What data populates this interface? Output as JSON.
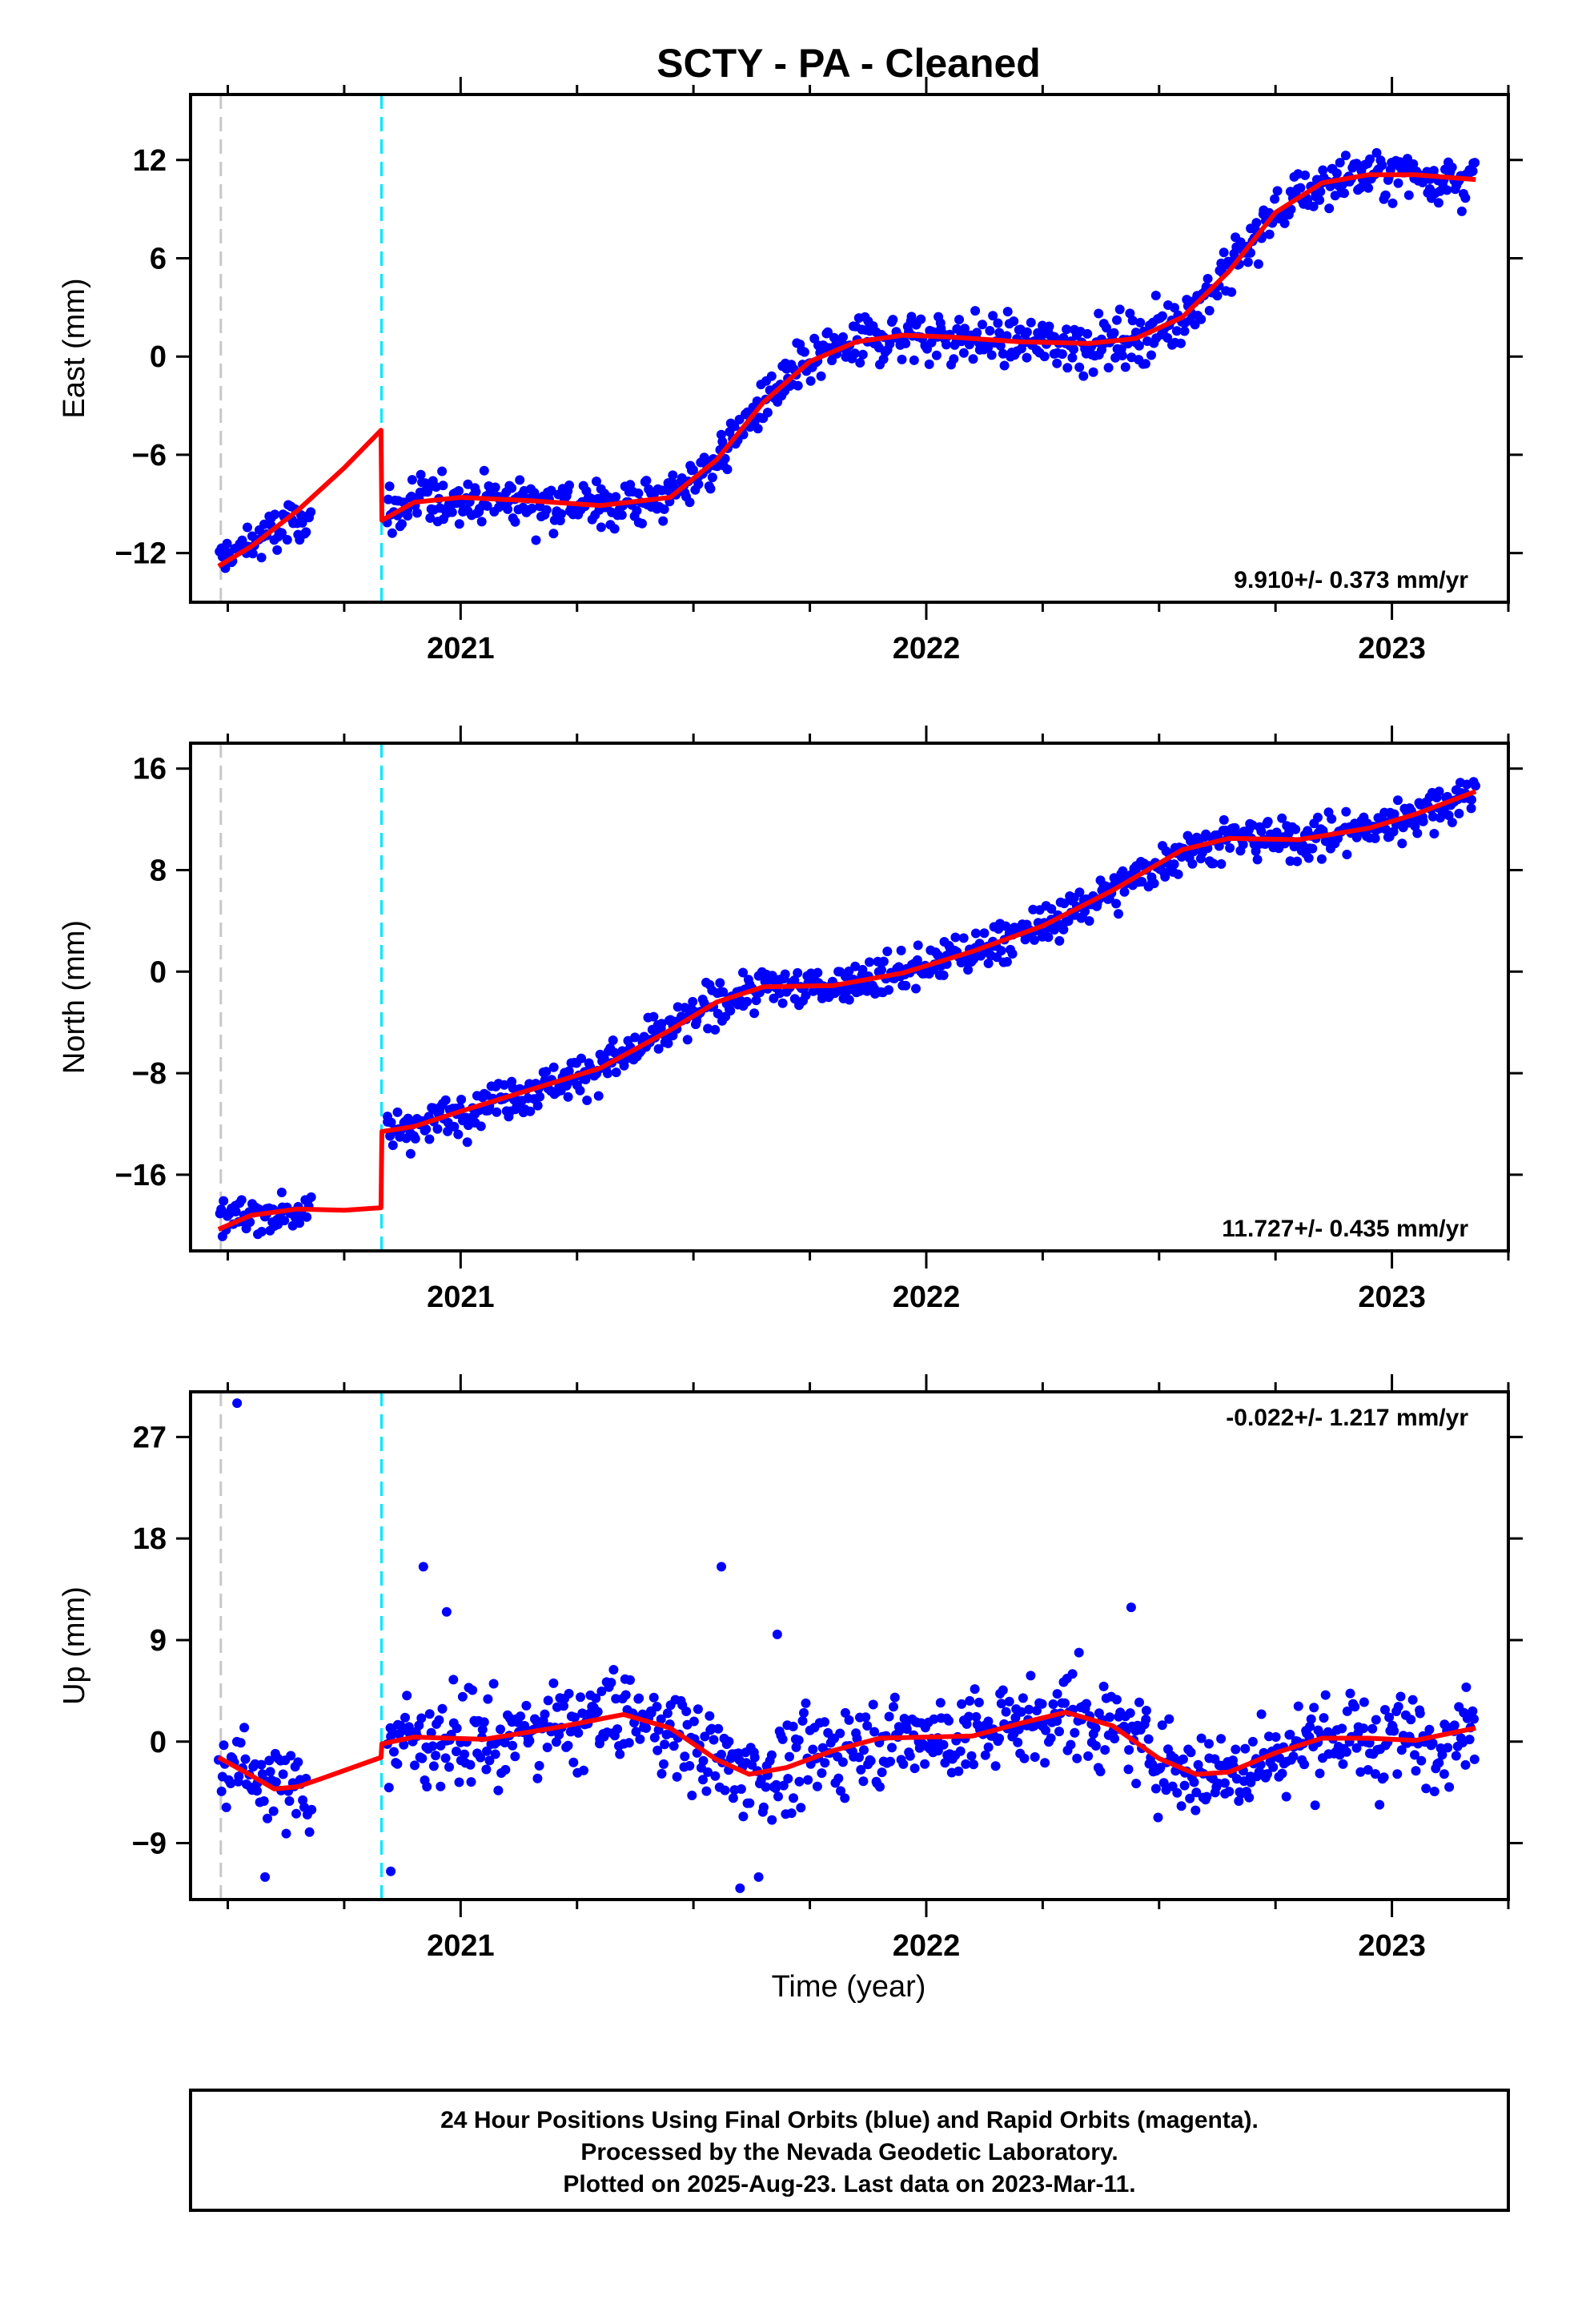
{
  "title": "SCTY  - PA - Cleaned",
  "xlabel": "Time (year)",
  "footer": {
    "line1": "24 Hour Positions Using Final Orbits (blue) and Rapid Orbits (magenta).",
    "line2": "Processed by the Nevada Geodetic Laboratory.",
    "line3": "Plotted on 2025-Aug-23. Last data on 2023-Mar-11."
  },
  "colors": {
    "points": "#0000ff",
    "model": "#ff0000",
    "equipment_change": "#c8c8c8",
    "cyan_marker": "#00e5ff",
    "frame": "#000000"
  },
  "chart_data": [
    {
      "type": "scatter",
      "ylabel": "East (mm)",
      "xlim": [
        2020.42,
        2023.25
      ],
      "ylim": [
        -15,
        16
      ],
      "yticks": [
        -12,
        -6,
        0,
        6,
        12
      ],
      "xticks": [
        2021,
        2022,
        2023
      ],
      "rate_label": "9.910+/- 0.373 mm/yr",
      "vlines": [
        {
          "x": 2020.485,
          "kind": "gray"
        },
        {
          "x": 2020.83,
          "kind": "cyan"
        }
      ],
      "model": {
        "x": [
          2020.48,
          2020.55,
          2020.65,
          2020.75,
          2020.829,
          2020.831,
          2020.9,
          2021.0,
          2021.15,
          2021.3,
          2021.45,
          2021.55,
          2021.65,
          2021.75,
          2021.85,
          2021.95,
          2022.05,
          2022.2,
          2022.35,
          2022.45,
          2022.55,
          2022.65,
          2022.75,
          2022.85,
          2022.95,
          2023.05,
          2023.18
        ],
        "y": [
          -12.8,
          -11.6,
          -9.4,
          -6.8,
          -4.5,
          -10.0,
          -8.9,
          -8.6,
          -8.8,
          -9.1,
          -8.6,
          -6.3,
          -2.8,
          -0.3,
          0.9,
          1.3,
          1.2,
          0.9,
          0.8,
          1.1,
          2.4,
          5.2,
          8.8,
          10.6,
          11.1,
          11.1,
          10.8
        ]
      },
      "points_model": {
        "segments": [
          {
            "x0": 2020.48,
            "x1": 2020.68,
            "n": 60,
            "base": [
              -12.4,
              -9.6
            ],
            "noise": 1.0
          },
          {
            "x0": 2020.84,
            "x1": 2023.18,
            "n": 760,
            "noise": 1.1
          }
        ]
      }
    },
    {
      "type": "scatter",
      "ylabel": "North (mm)",
      "xlim": [
        2020.42,
        2023.25
      ],
      "ylim": [
        -22,
        18
      ],
      "yticks": [
        -16,
        -8,
        0,
        8,
        16
      ],
      "xticks": [
        2021,
        2022,
        2023
      ],
      "rate_label": "11.727+/- 0.435 mm/yr",
      "vlines": [
        {
          "x": 2020.485,
          "kind": "gray"
        },
        {
          "x": 2020.83,
          "kind": "cyan"
        }
      ],
      "model": {
        "x": [
          2020.48,
          2020.55,
          2020.65,
          2020.75,
          2020.829,
          2020.831,
          2020.9,
          2021.0,
          2021.15,
          2021.3,
          2021.45,
          2021.55,
          2021.65,
          2021.8,
          2021.95,
          2022.1,
          2022.25,
          2022.4,
          2022.55,
          2022.65,
          2022.8,
          2022.95,
          2023.05,
          2023.18
        ],
        "y": [
          -20.3,
          -19.2,
          -18.7,
          -18.8,
          -18.6,
          -12.6,
          -12.2,
          -11.0,
          -9.3,
          -7.6,
          -4.6,
          -2.4,
          -1.2,
          -1.1,
          -0.1,
          1.6,
          3.6,
          6.4,
          9.6,
          10.5,
          10.4,
          11.3,
          12.4,
          14.2
        ]
      },
      "points_model": {
        "segments": [
          {
            "x0": 2020.48,
            "x1": 2020.68,
            "n": 60,
            "base": [
              -19.4,
              -18.8
            ],
            "noise": 1.0
          },
          {
            "x0": 2020.84,
            "x1": 2023.18,
            "n": 760,
            "noise": 1.15
          }
        ]
      }
    },
    {
      "type": "scatter",
      "ylabel": "Up (mm)",
      "xlim": [
        2020.42,
        2023.25
      ],
      "ylim": [
        -14,
        31
      ],
      "yticks": [
        -9,
        0,
        9,
        18,
        27
      ],
      "xticks": [
        2021,
        2022,
        2023
      ],
      "rate_label": "-0.022+/- 1.217 mm/yr",
      "vlines": [
        {
          "x": 2020.485,
          "kind": "gray"
        },
        {
          "x": 2020.83,
          "kind": "cyan"
        }
      ],
      "model": {
        "x": [
          2020.48,
          2020.55,
          2020.6,
          2020.65,
          2020.7,
          2020.829,
          2020.831,
          2020.9,
          2021.05,
          2021.2,
          2021.35,
          2021.45,
          2021.55,
          2021.62,
          2021.7,
          2021.8,
          2021.9,
          2022.0,
          2022.1,
          2022.2,
          2022.3,
          2022.4,
          2022.5,
          2022.58,
          2022.65,
          2022.75,
          2022.85,
          2022.95,
          2023.05,
          2023.18
        ],
        "y": [
          -1.4,
          -3.0,
          -4.2,
          -4.0,
          -3.3,
          -1.4,
          -0.2,
          0.4,
          0.2,
          1.2,
          2.4,
          1.2,
          -1.6,
          -2.9,
          -2.3,
          -0.8,
          0.3,
          0.4,
          0.5,
          1.6,
          2.6,
          1.4,
          -1.5,
          -2.9,
          -2.7,
          -1.0,
          0.3,
          0.3,
          0.1,
          1.2
        ]
      },
      "points_model": {
        "segments": [
          {
            "x0": 2020.48,
            "x1": 2020.68,
            "n": 60,
            "base": [
              -2.0,
              -4.5
            ],
            "noise": 2.4
          },
          {
            "x0": 2020.84,
            "x1": 2023.18,
            "n": 760,
            "noise": 2.8
          }
        ],
        "outliers": [
          {
            "x": 2020.52,
            "y": 30.0
          },
          {
            "x": 2020.92,
            "y": 15.5
          },
          {
            "x": 2020.97,
            "y": 11.5
          },
          {
            "x": 2021.56,
            "y": 15.5
          },
          {
            "x": 2021.68,
            "y": 9.5
          },
          {
            "x": 2022.44,
            "y": 11.9
          },
          {
            "x": 2020.58,
            "y": -12.0
          },
          {
            "x": 2021.6,
            "y": -13.0
          },
          {
            "x": 2021.64,
            "y": -12.0
          },
          {
            "x": 2020.85,
            "y": -11.5
          }
        ]
      }
    }
  ]
}
